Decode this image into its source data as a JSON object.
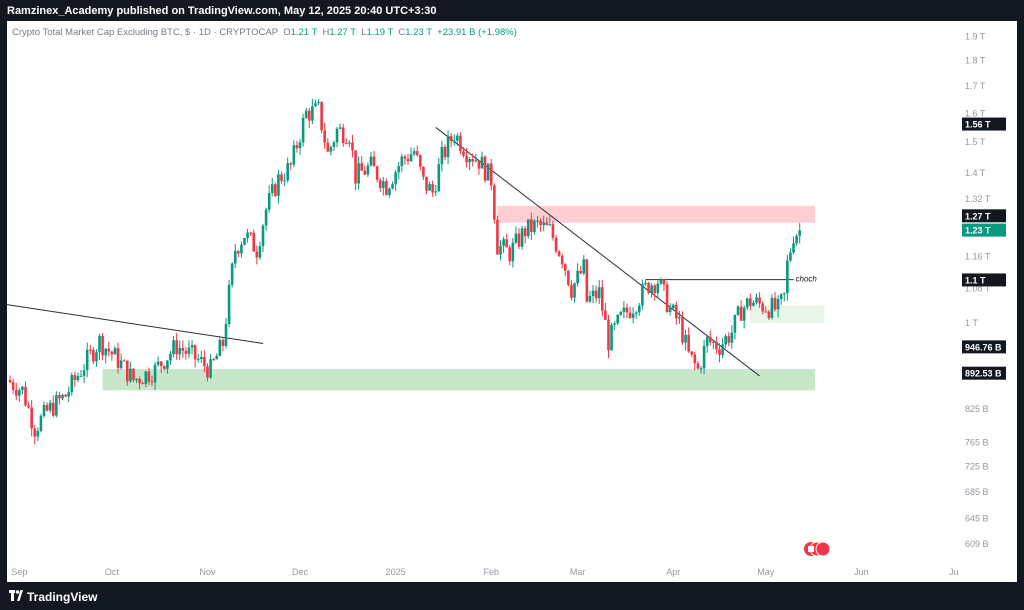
{
  "header": {
    "publisher": "Ramzinex_Academy published on TradingView.com, May 12, 2025 20:40 UTC+3:30"
  },
  "legend": {
    "symbol": "Crypto Total Market Cap Excluding BTC, $ · 1D · CRYPTOCAP",
    "o_label": "O",
    "o_value": "1.21 T",
    "h_label": "H",
    "h_value": "1.27 T",
    "l_label": "L",
    "l_value": "1.19 T",
    "c_label": "C",
    "c_value": "1.23 T",
    "change": "+23.91 B (+1.98%)"
  },
  "footer": {
    "brand": "TradingView"
  },
  "colors": {
    "up": "#089981",
    "down": "#f23645",
    "background": "#ffffff",
    "frame": "#131722",
    "axis_text": "#9598a1",
    "supply_zone": "#ffcdd2",
    "demand_zone": "#c8e6c9",
    "trendline": "#2a2e39"
  },
  "chart_data": {
    "type": "candlestick",
    "title": "Crypto Total Market Cap Excluding BTC, $ · 1D · CRYPTOCAP",
    "y_scale": "log",
    "ylim": [
      580,
      1950
    ],
    "y_unit": "B USD",
    "y_ticks": [
      {
        "label": "1.9 T",
        "value": 1900
      },
      {
        "label": "1.8 T",
        "value": 1800
      },
      {
        "label": "1.7 T",
        "value": 1700
      },
      {
        "label": "1.6 T",
        "value": 1600
      },
      {
        "label": "1.5 T",
        "value": 1500
      },
      {
        "label": "1.4 T",
        "value": 1400
      },
      {
        "label": "1.32 T",
        "value": 1320
      },
      {
        "label": "1.16 T",
        "value": 1160
      },
      {
        "label": "1.08 T",
        "value": 1080
      },
      {
        "label": "1 T",
        "value": 1000
      },
      {
        "label": "825 B",
        "value": 825
      },
      {
        "label": "765 B",
        "value": 765
      },
      {
        "label": "725 B",
        "value": 725
      },
      {
        "label": "685 B",
        "value": 685
      },
      {
        "label": "645 B",
        "value": 645
      },
      {
        "label": "609 B",
        "value": 609
      }
    ],
    "price_labels": [
      {
        "label": "1.56 T",
        "value": 1560,
        "style": "dark"
      },
      {
        "label": "1.27 T",
        "value": 1270,
        "style": "dark"
      },
      {
        "label": "1.23 T",
        "value": 1230,
        "style": "green"
      },
      {
        "label": "1.1 T",
        "value": 1100,
        "style": "dark"
      },
      {
        "label": "946.76 B",
        "value": 946.76,
        "style": "dark"
      },
      {
        "label": "892.53 B",
        "value": 892.53,
        "style": "dark"
      }
    ],
    "x_labels": [
      {
        "label": "Sep",
        "date": "2024-09-01"
      },
      {
        "label": "Oct",
        "date": "2024-10-01"
      },
      {
        "label": "Nov",
        "date": "2024-11-01"
      },
      {
        "label": "Dec",
        "date": "2024-12-01"
      },
      {
        "label": "2025",
        "date": "2025-01-01"
      },
      {
        "label": "Feb",
        "date": "2025-02-01"
      },
      {
        "label": "Mar",
        "date": "2025-03-01"
      },
      {
        "label": "Apr",
        "date": "2025-04-01"
      },
      {
        "label": "May",
        "date": "2025-05-01"
      },
      {
        "label": "Jun",
        "date": "2025-06-01"
      },
      {
        "label": "Ju",
        "date": "2025-07-01"
      }
    ],
    "xlim": [
      "2024-08-28",
      "2025-07-02"
    ],
    "path": [
      [
        "2024-08-28",
        880
      ],
      [
        "2024-09-02",
        860
      ],
      [
        "2024-09-06",
        790
      ],
      [
        "2024-09-10",
        820
      ],
      [
        "2024-09-16",
        850
      ],
      [
        "2024-09-20",
        890
      ],
      [
        "2024-09-27",
        960
      ],
      [
        "2024-10-03",
        920
      ],
      [
        "2024-10-08",
        880
      ],
      [
        "2024-10-15",
        900
      ],
      [
        "2024-10-22",
        950
      ],
      [
        "2024-10-29",
        920
      ],
      [
        "2024-11-02",
        900
      ],
      [
        "2024-11-06",
        955
      ],
      [
        "2024-11-10",
        1180
      ],
      [
        "2024-11-13",
        1220
      ],
      [
        "2024-11-17",
        1180
      ],
      [
        "2024-11-20",
        1290
      ],
      [
        "2024-11-24",
        1380
      ],
      [
        "2024-11-28",
        1420
      ],
      [
        "2024-12-03",
        1600
      ],
      [
        "2024-12-07",
        1610
      ],
      [
        "2024-12-10",
        1460
      ],
      [
        "2024-12-13",
        1540
      ],
      [
        "2024-12-17",
        1530
      ],
      [
        "2024-12-19",
        1390
      ],
      [
        "2024-12-24",
        1420
      ],
      [
        "2024-12-29",
        1360
      ],
      [
        "2025-01-03",
        1440
      ],
      [
        "2025-01-07",
        1470
      ],
      [
        "2025-01-10",
        1370
      ],
      [
        "2025-01-13",
        1340
      ],
      [
        "2025-01-16",
        1450
      ],
      [
        "2025-01-20",
        1530
      ],
      [
        "2025-01-24",
        1470
      ],
      [
        "2025-01-28",
        1440
      ],
      [
        "2025-02-01",
        1380
      ],
      [
        "2025-02-03",
        1190
      ],
      [
        "2025-02-07",
        1170
      ],
      [
        "2025-02-12",
        1230
      ],
      [
        "2025-02-16",
        1245
      ],
      [
        "2025-02-20",
        1230
      ],
      [
        "2025-02-24",
        1160
      ],
      [
        "2025-02-27",
        1080
      ],
      [
        "2025-03-03",
        1130
      ],
      [
        "2025-03-04",
        1050
      ],
      [
        "2025-03-08",
        1070
      ],
      [
        "2025-03-11",
        960
      ],
      [
        "2025-03-15",
        1010
      ],
      [
        "2025-03-19",
        1040
      ],
      [
        "2025-03-24",
        1090
      ],
      [
        "2025-03-27",
        1100
      ],
      [
        "2025-03-31",
        1030
      ],
      [
        "2025-04-03",
        1000
      ],
      [
        "2025-04-06",
        930
      ],
      [
        "2025-04-09",
        900
      ],
      [
        "2025-04-12",
        960
      ],
      [
        "2025-04-16",
        950
      ],
      [
        "2025-04-20",
        980
      ],
      [
        "2025-04-23",
        1030
      ],
      [
        "2025-04-26",
        1050
      ],
      [
        "2025-04-30",
        1040
      ],
      [
        "2025-05-05",
        1030
      ],
      [
        "2025-05-07",
        1060
      ],
      [
        "2025-05-08",
        1140
      ],
      [
        "2025-05-10",
        1220
      ],
      [
        "2025-05-12",
        1230
      ]
    ],
    "zones": [
      {
        "name": "supply",
        "from": "2025-02-03",
        "to": "2025-05-17",
        "low": 1252,
        "high": 1300,
        "color": "#ffcdd2"
      },
      {
        "name": "demand-lower",
        "from": "2024-09-28",
        "to": "2025-05-17",
        "low": 860,
        "high": 902,
        "color": "#c8e6c9"
      },
      {
        "name": "demand-upper",
        "from": "2025-04-26",
        "to": "2025-05-20",
        "low": 1000,
        "high": 1040,
        "color": "#e8f5e9"
      }
    ],
    "lines": [
      {
        "name": "trendline-lower",
        "from": [
          "2024-08-28",
          1042
        ],
        "to": [
          "2024-11-19",
          955
        ]
      },
      {
        "name": "trendline-upper",
        "from": [
          "2025-01-14",
          1550
        ],
        "to": [
          "2025-04-29",
          888
        ]
      },
      {
        "name": "choch-line",
        "from": [
          "2025-03-23",
          1102
        ],
        "to": [
          "2025-05-10",
          1102
        ]
      }
    ],
    "annotations": [
      {
        "text": "choch",
        "date": "2025-05-10",
        "value": 1100
      }
    ]
  }
}
